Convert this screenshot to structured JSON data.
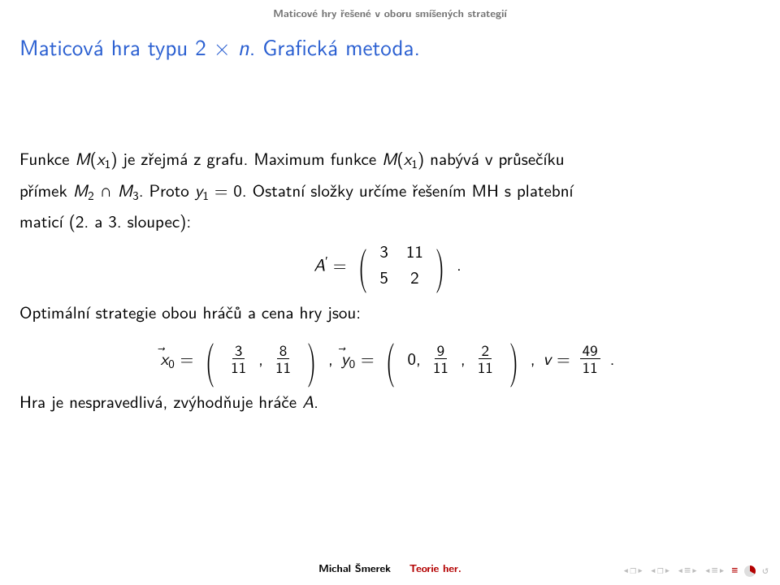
{
  "breadcrumb": "Maticové hry řešené v oboru smíšených strategií",
  "title_a": "Maticová hra typu 2 × ",
  "title_b": "n",
  "title_c": ". Grafická metoda.",
  "p1_a": "Funkce ",
  "p1_M": "M",
  "p1_paren_open": "(",
  "p1_x": "x",
  "p1_sub1": "1",
  "p1_paren_close": ")",
  "p1_b": " je zřejmá z grafu. Maximum funkce ",
  "p1_c": " nabývá v průsečíku",
  "p2_a": "přímek ",
  "p2_M": "M",
  "p2_sub2": "2",
  "p2_cap": " ∩ ",
  "p2_M3": "M",
  "p2_sub3": "3",
  "p2_b": ". Proto ",
  "p2_y": "y",
  "p2_ysub": "1",
  "p2_eq0": " = 0. Ostatní složky určíme řešením MH s platební",
  "p3_a": "maticí (2. a 3. sloupec):",
  "mat_label_A": "A",
  "mat_prime": "′",
  "mat_eq": " = ",
  "mat": {
    "r1c1": "3",
    "r1c2": "11",
    "r2c1": "5",
    "r2c2": "2"
  },
  "mat_period": ".",
  "p4": "Optimální strategie obou hráčů a cena hry jsou:",
  "eq_x": "x",
  "eq_xsub": "0",
  "eq_xeq": " = ",
  "x0_a_num": "3",
  "x0_a_den": "11",
  "x0_b_num": "8",
  "x0_b_den": "11",
  "eq_comma1": " ,  ",
  "eq_y": "y",
  "eq_ysub": "0",
  "eq_yeq": " = ",
  "y0_0": "0, ",
  "y0_a_num": "9",
  "y0_a_den": "11",
  "y0_b_num": "2",
  "y0_b_den": "11",
  "eq_comma2": " ,  ",
  "eq_v": "v",
  "eq_veq": " = ",
  "v_num": "49",
  "v_den": "11",
  "eq_period": ".",
  "p5_a": "Hra je nespravedlivá, zvýhodňuje hráče ",
  "p5_A": "A",
  "p5_b": ".",
  "footer_author": "Michal Šmerek",
  "footer_course": "Teorie her.",
  "nav": {
    "back": "◂",
    "fwd": "▸",
    "page_l": "◂",
    "page_box": "❐",
    "page_r": "▸",
    "chev_l1": "◂",
    "bar1": "≡",
    "chev_r1": "▸",
    "chev_l2": "◂",
    "bar2": "≡",
    "chev_r2": "▸",
    "eq": "≡",
    "loop": "↺"
  },
  "colors": {
    "title": "#2a5fd1",
    "breadcrumb": "#727272",
    "accent": "#b30000",
    "text": "#000000",
    "nav": "#bcbcbc",
    "bg": "#ffffff"
  }
}
